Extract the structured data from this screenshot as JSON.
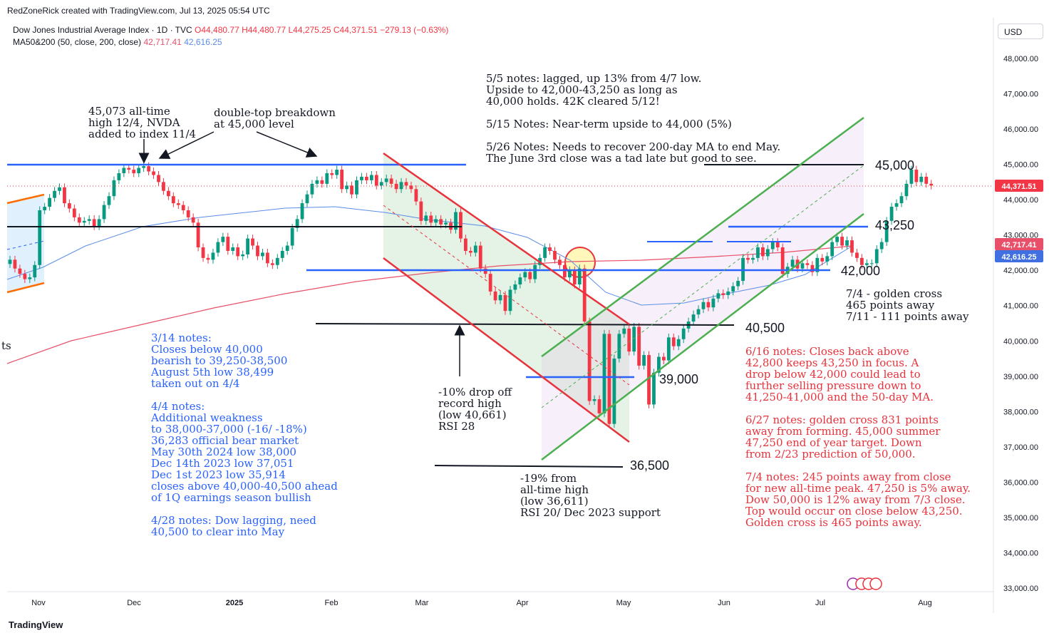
{
  "header": {
    "attribution": "RedZoneRick created with TradingView.com, Jul 13, 2025 05:54 UTC",
    "symbol_line": "Dow Jones Industrial Average Index · 1D · TVC",
    "ohlc": "O44,480.77  H44,480.77  L44,275.25  C44,371.51  −279.13 (−0.63%)",
    "ma_label": "MA50&200 (50, close, 200, close)",
    "ma50_value": "42,717.41",
    "ma200_value": "42,616.25",
    "currency": "USD"
  },
  "footer": {
    "brand": "TradingView"
  },
  "price_labels": {
    "last": "44,371.51",
    "ma50": "42,717.41",
    "ma200": "42,616.25"
  },
  "level_labels": [
    "45,000",
    "43,250",
    "42,000",
    "40,500",
    "39,000",
    "36,500"
  ],
  "annotations": {
    "ath": "45,073 all-time\nhigh 12/4, NVDA\nadded to index 11/4",
    "double_top": "double-top breakdown\nat 45,000 level",
    "notes_may": "5/5 notes: lagged, up 13% from 4/7 low.\nUpside to 42,000-43,250 as long as\n40,000 holds. 42K cleared 5/12!\n\n5/15 Notes: Near-term upside to 44,000 (5%)\n\n5/26 Notes: Needs to recover 200-day MA to end May.\nThe June 3rd close was a tad late but good to see.",
    "golden": "7/4 - golden cross\n465 points away\n7/11 - 111 points away",
    "notes_blue": "3/14 notes:\nCloses below 40,000\nbearish to 39,250-38,500\nAugust 5th low 38,499\ntaken out on 4/4\n\n4/4 notes:\nAdditional weakness\nto 38,000-37,000 (-16/ -18%)\n36,283 official bear market\nMay 30th 2024 low 38,000\nDec 14th 2023 low 37,051\nDec 1st 2023 low 35,914\ncloses above 40,000-40,500 ahead\nof 1Q earnings season bullish\n\n4/28 notes: Dow lagging, need\n40,500 to clear into May",
    "drop10": "-10% drop off\nrecord high\n(low 40,661)\nRSI 28",
    "drop19": "-19% from\nall-time high\n(low 36,611)\nRSI 20/ Dec 2023 support",
    "notes_red": "6/16 notes: Closes back above\n42,800 keeps 43,250 in focus. A\ndrop below 42,000 could lead to\nfurther selling pressure down to\n41,250-41,000 and the 50-day MA.\n\n6/27 notes: golden cross 831 points\naway from forming. 45,000 summer\n47,250 end of year target. Down\nfrom 2/23 prediction of 50,000.\n\n7/4 notes: 245 points away from close\nfor new all-time peak. 47,250 is 5% away.\nDow 50,000 is 12% away from 7/3 close.\nTop would occur on close below 43,250.\nGolden cross is 465 points away.",
    "cut_text": "ts"
  },
  "colors": {
    "up": "#089981",
    "down": "#f23645",
    "ma50": "#5b8de8",
    "ma200": "#e8506a",
    "blue_line": "#2962ff",
    "green_channel": "#4caf50",
    "red_channel": "#e8323c"
  },
  "chart_data": {
    "type": "candlestick",
    "title": "Dow Jones Industrial Average Index · 1D · TVC",
    "x_ticks": [
      "Nov",
      "Dec",
      "2025",
      "Feb",
      "Mar",
      "Apr",
      "May",
      "Jun",
      "Jul",
      "Aug"
    ],
    "y_ticks": [
      "48,000.00",
      "47,000.00",
      "46,000.00",
      "45,000.00",
      "44,000.00",
      "43,000.00",
      "42,000.00",
      "41,000.00",
      "40,000.00",
      "39,000.00",
      "38,000.00",
      "37,000.00",
      "36,000.00",
      "35,000.00",
      "34,000.00",
      "33,000.00"
    ],
    "ylim": [
      32800,
      48500
    ],
    "close_approx": [
      42300,
      42050,
      41900,
      41750,
      41800,
      42150,
      43700,
      43800,
      44050,
      44250,
      44350,
      43900,
      43750,
      43500,
      43350,
      43400,
      43450,
      43250,
      43450,
      43850,
      44100,
      44550,
      44750,
      44900,
      44850,
      44750,
      44900,
      44950,
      44800,
      44700,
      44500,
      44250,
      44100,
      43900,
      43850,
      43700,
      43500,
      43350,
      42650,
      42350,
      42300,
      42500,
      42800,
      42950,
      42550,
      42650,
      42400,
      42450,
      42900,
      42700,
      42400,
      42500,
      42200,
      42150,
      42350,
      42550,
      42700,
      43200,
      43450,
      43900,
      44150,
      44450,
      44550,
      44450,
      44750,
      44700,
      44850,
      44300,
      44400,
      44150,
      44550,
      44650,
      44550,
      44700,
      44400,
      44500,
      44600,
      44450,
      44300,
      44500,
      44400,
      44300,
      43950,
      43400,
      43550,
      43350,
      43450,
      43300,
      43350,
      43150,
      43650,
      42900,
      42550,
      42500,
      42700,
      42050,
      41900,
      41400,
      41150,
      41300,
      40850,
      41450,
      41600,
      41800,
      41950,
      41750,
      42150,
      42350,
      42650,
      42550,
      42300,
      42150,
      41800,
      42000,
      41600,
      42050,
      40550,
      38300,
      38350,
      37950,
      40200,
      37650,
      39500,
      40200,
      40350,
      39700,
      40400,
      39300,
      39600,
      38200,
      39100,
      39550,
      39450,
      40100,
      39850,
      40050,
      40350,
      40550,
      40750,
      40900,
      41100,
      40950,
      41200,
      41350,
      41300,
      41400,
      41550,
      41700,
      42350,
      42300,
      42350,
      42650,
      42400,
      42600,
      42800,
      42650,
      41900,
      42100,
      42300,
      42050,
      42200,
      42150,
      41950,
      42350,
      42250,
      42400,
      42800,
      42950,
      42700,
      42850,
      42500,
      42350,
      42150,
      42200,
      42200,
      42600,
      42800,
      43400,
      43800,
      43900,
      44100,
      44450,
      44850,
      44500,
      44650,
      44450,
      44400
    ],
    "ma50_label": "42,717.41",
    "ma200_label": "42,616.25",
    "last_price": "44,371.51"
  }
}
